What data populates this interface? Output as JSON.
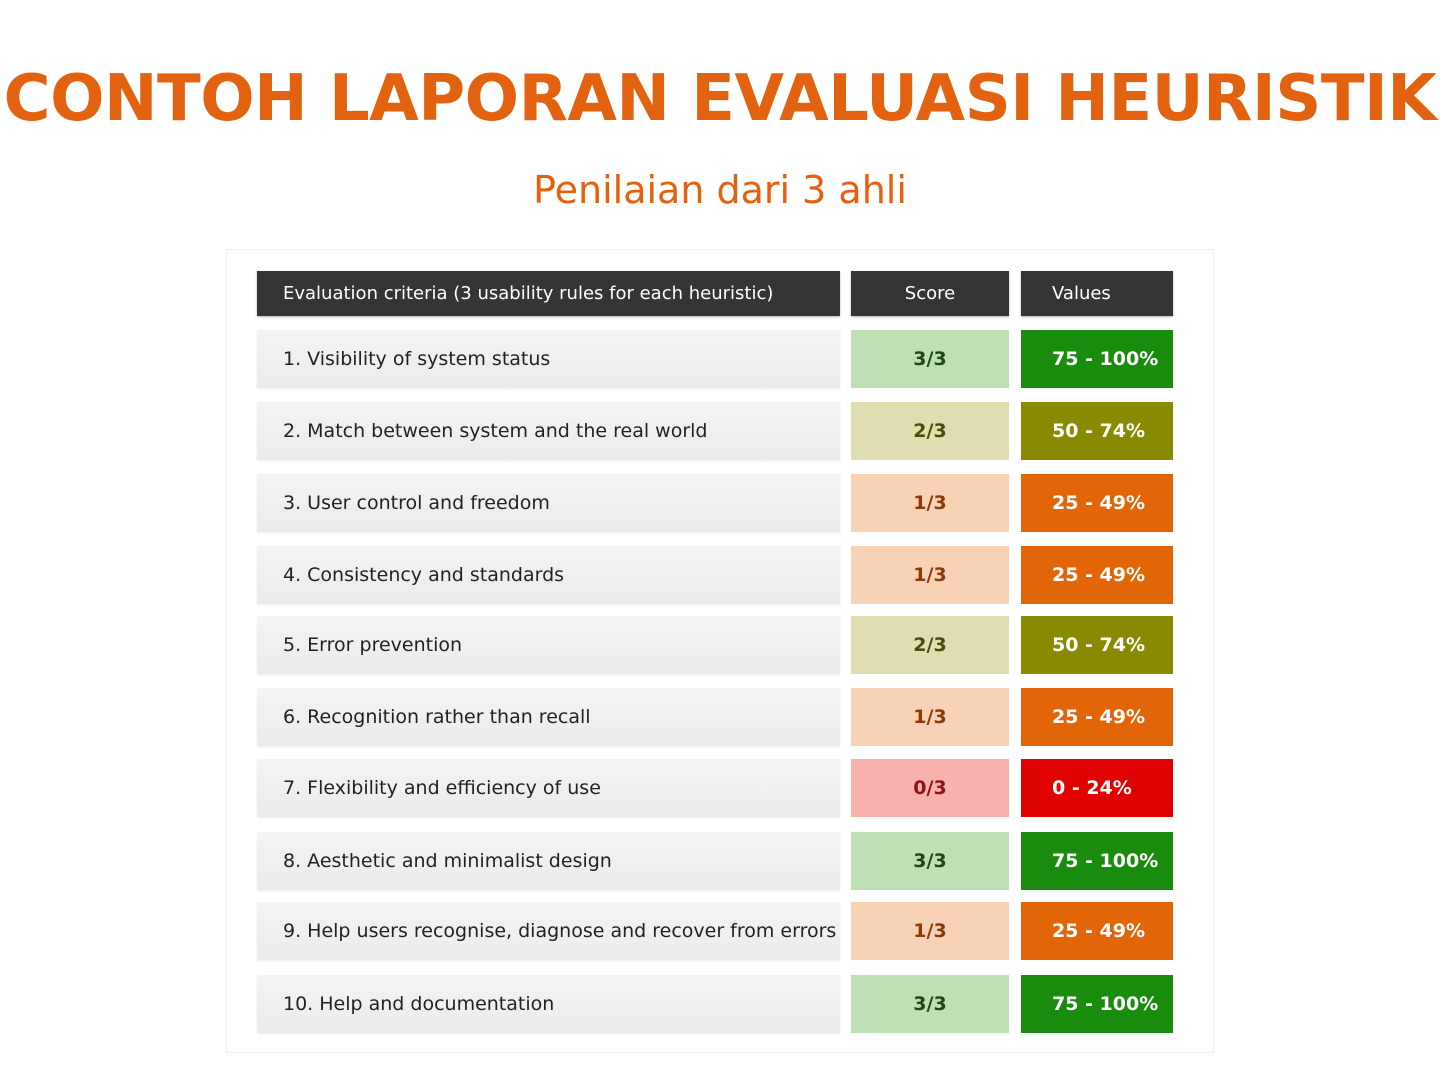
{
  "title": "CONTOH LAPORAN EVALUASI HEURISTIK",
  "subtitle": "Penilaian dari 3 ahli",
  "table": {
    "headers": {
      "criteria": "Evaluation criteria (3 usability rules for each heuristic)",
      "score": "Score",
      "values": "Values"
    },
    "rows": [
      {
        "criteria": "1. Visibility of system status",
        "score": "3/3",
        "value": "75 - 100%",
        "level": "high"
      },
      {
        "criteria": "2. Match between system and the real world",
        "score": "2/3",
        "value": "50 - 74%",
        "level": "mid"
      },
      {
        "criteria": "3. User control and freedom",
        "score": "1/3",
        "value": "25 - 49%",
        "level": "low"
      },
      {
        "criteria": "4. Consistency and standards",
        "score": "1/3",
        "value": "25 - 49%",
        "level": "low"
      },
      {
        "criteria": "5. Error prevention",
        "score": "2/3",
        "value": "50 - 74%",
        "level": "mid"
      },
      {
        "criteria": "6. Recognition rather than recall",
        "score": "1/3",
        "value": "25 - 49%",
        "level": "low"
      },
      {
        "criteria": "7. Flexibility and efficiency of use",
        "score": "0/3",
        "value": "0 - 24%",
        "level": "none"
      },
      {
        "criteria": "8. Aesthetic and minimalist design",
        "score": "3/3",
        "value": "75 - 100%",
        "level": "high"
      },
      {
        "criteria": "9. Help users recognise, diagnose and recover from errors",
        "score": "1/3",
        "value": "25 - 49%",
        "level": "low"
      },
      {
        "criteria": "10. Help and documentation",
        "score": "3/3",
        "value": "75 - 100%",
        "level": "high"
      }
    ]
  },
  "colors": {
    "title": "#e2620f",
    "header_bg": "#353535",
    "high": {
      "score_bg": "#bfdfb4",
      "score_text": "#1d4a12",
      "value_bg": "#1a8c0d"
    },
    "mid": {
      "score_bg": "#e0ddb2",
      "score_text": "#4d4a0a",
      "value_bg": "#8a8a00"
    },
    "low": {
      "score_bg": "#f8d2b4",
      "score_text": "#8a3a06",
      "value_bg": "#e26507"
    },
    "none": {
      "score_bg": "#f7b2ad",
      "score_text": "#8a1512",
      "value_bg": "#df0201"
    }
  }
}
